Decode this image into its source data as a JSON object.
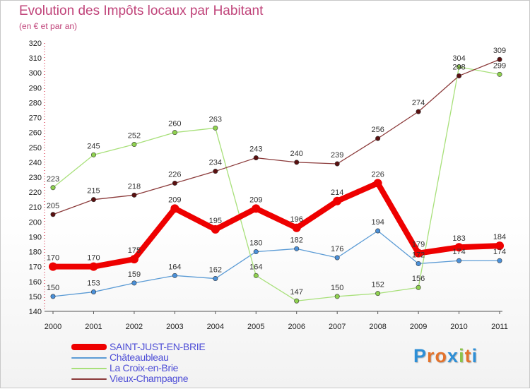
{
  "title": "Evolution des Impôts locaux par Habitant",
  "subtitle": "(en € et par an)",
  "logo": {
    "text": "Proxiti",
    "colors": [
      "#2e8fd6",
      "#e3722b",
      "#e3722b",
      "#2e8fd6",
      "#8bc34a",
      "#e3722b",
      "#2e8fd6"
    ]
  },
  "chart_data": {
    "type": "line",
    "x": [
      "2000",
      "2001",
      "2002",
      "2003",
      "2004",
      "2005",
      "2006",
      "2007",
      "2008",
      "2009",
      "2010",
      "2011"
    ],
    "ylim": [
      140,
      320
    ],
    "yticks": [
      140,
      150,
      160,
      170,
      180,
      190,
      200,
      210,
      220,
      230,
      240,
      250,
      260,
      270,
      280,
      290,
      300,
      310,
      320
    ],
    "legend_position": "bottom-left",
    "grid": false,
    "series": [
      {
        "name": "SAINT-JUST-EN-BRIE",
        "color": "#ee0000",
        "marker": "#ee0000",
        "width": 8,
        "values": [
          170,
          170,
          175,
          209,
          195,
          209,
          196,
          214,
          226,
          179,
          183,
          184
        ]
      },
      {
        "name": "Châteaubleau",
        "color": "#5b9bd5",
        "marker": "#4a90d9",
        "width": 1.3,
        "values": [
          150,
          153,
          159,
          164,
          162,
          180,
          182,
          176,
          194,
          172,
          174,
          174
        ]
      },
      {
        "name": "La Croix-en-Brie",
        "color": "#a8e07a",
        "marker": "#8fd14f",
        "width": 1.3,
        "values": [
          223,
          245,
          252,
          260,
          263,
          164,
          147,
          150,
          152,
          156,
          304,
          299
        ]
      },
      {
        "name": "Vieux-Champagne",
        "color": "#8b3a3a",
        "marker": "#5a1010",
        "width": 1.3,
        "values": [
          205,
          215,
          218,
          226,
          234,
          243,
          240,
          239,
          256,
          274,
          298,
          309
        ]
      }
    ],
    "data_labels": [
      [
        "170",
        "170",
        "175",
        "209",
        "195",
        "209",
        "196",
        "214",
        "226",
        "179",
        "183",
        "184"
      ],
      [
        "150",
        "153",
        "159",
        "164",
        "162",
        "180",
        "182",
        "176",
        "194",
        "172",
        "174",
        "174"
      ],
      [
        "223",
        "245",
        "252",
        "260",
        "263",
        "164",
        "147",
        "150",
        "152",
        "156",
        "304",
        "299"
      ],
      [
        "205",
        "215",
        "218",
        "226",
        "234",
        "243",
        "240",
        "239",
        "256",
        "274",
        "298",
        "309"
      ]
    ]
  }
}
